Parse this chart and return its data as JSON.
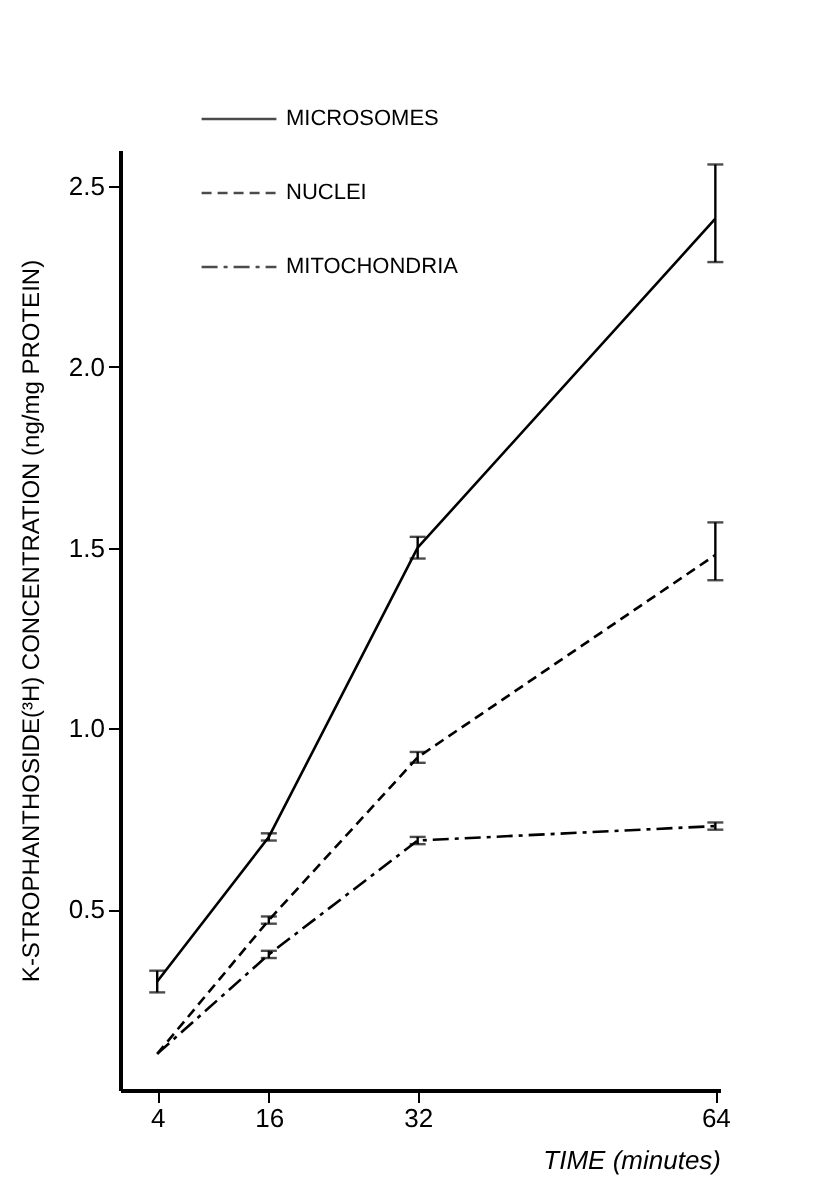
{
  "chart_data": {
    "type": "line",
    "xlabel": "TIME (minutes)",
    "ylabel": "K-STROPHANTHOSIDE(³H)  CONCENTRATION  (ng/mg PROTEIN)",
    "x": [
      4,
      16,
      32,
      64
    ],
    "xlim": [
      0,
      64.5
    ],
    "xticks": [
      4,
      16,
      32,
      64
    ],
    "ylim": [
      0,
      2.6
    ],
    "yticks": [
      0.5,
      {
        "value": 1,
        "label": "1.0"
      },
      1.5,
      {
        "value": 2,
        "label": "2.0"
      },
      2.5
    ],
    "grid": false,
    "legend": "top left",
    "marker": "none",
    "series": [
      {
        "name": "MICROSOMES",
        "color": "#000000",
        "line_style": "solid",
        "values": [
          0.3,
          0.7,
          1.5,
          2.41
        ],
        "errors": [
          0.03,
          0.01,
          0.03,
          [
            2.29,
            2.56
          ]
        ]
      },
      {
        "name": "NUCLEI",
        "color": "#000000",
        "line_style": "dashed",
        "values": [
          0.1,
          0.47,
          0.92,
          1.48
        ],
        "errors": [
          null,
          0.01,
          0.015,
          [
            1.41,
            1.57
          ]
        ]
      },
      {
        "name": "MITOCHONDRIA",
        "color": "#000000",
        "line_style": "dashdot",
        "values": [
          0.1,
          0.375,
          0.69,
          0.73
        ],
        "errors": [
          null,
          0.01,
          0.01,
          0.01
        ]
      }
    ]
  }
}
